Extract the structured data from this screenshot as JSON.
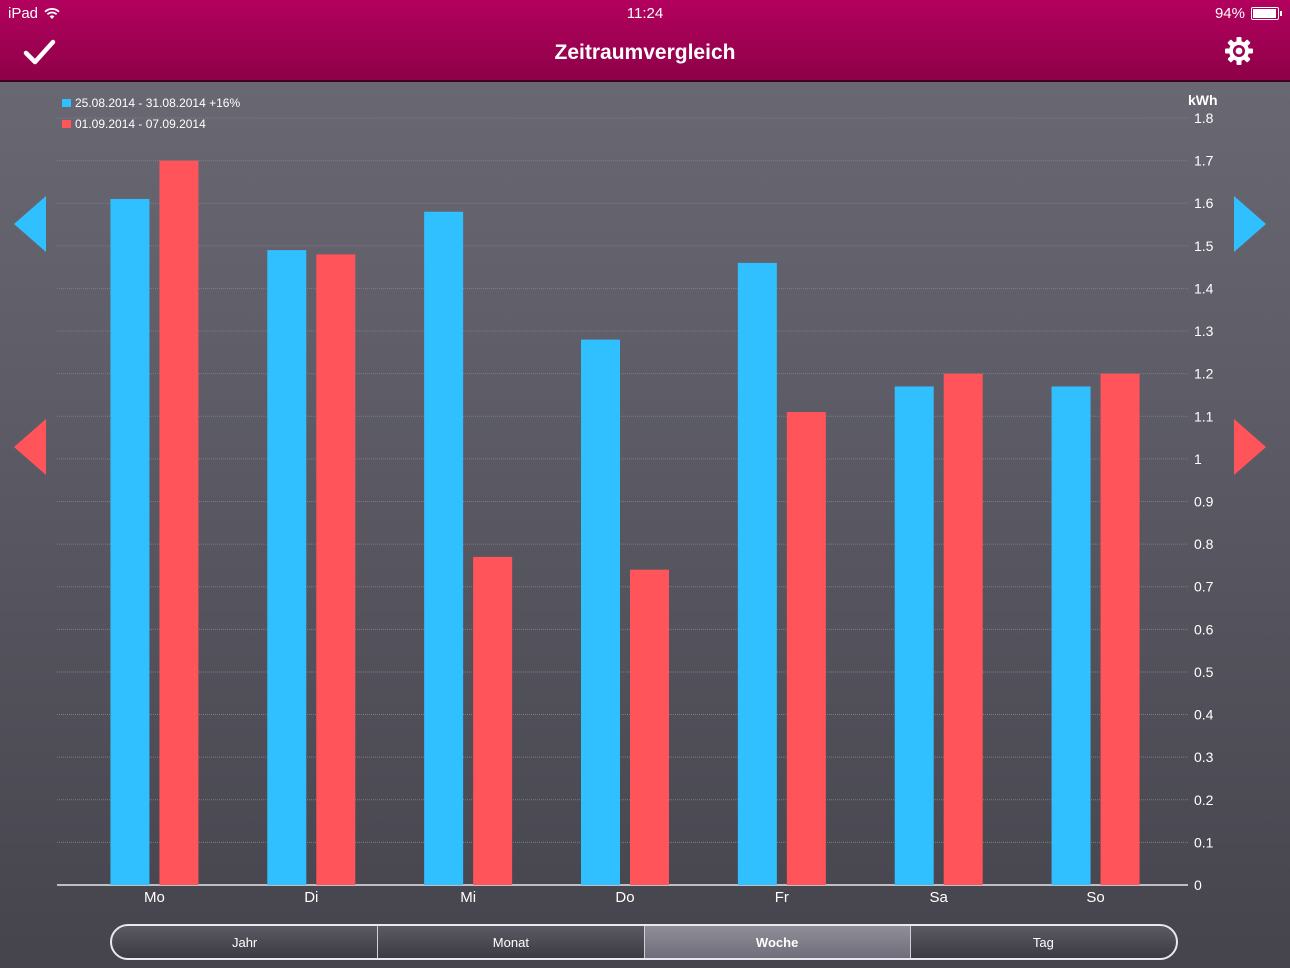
{
  "status_bar": {
    "carrier": "iPad",
    "time": "11:24",
    "battery": "94%",
    "battery_level": 0.94
  },
  "nav": {
    "title": "Zeitraumvergleich",
    "done_icon": "checkmark-icon",
    "settings_icon": "gear-icon"
  },
  "colors": {
    "series_1": "#30bfff",
    "series_2": "#ff5459",
    "bar_top": "#b3015e",
    "bar_bottom": "#8e0148"
  },
  "chart_data": {
    "type": "bar",
    "categories": [
      "Mo",
      "Di",
      "Mi",
      "Do",
      "Fr",
      "Sa",
      "So"
    ],
    "series": [
      {
        "name": "25.08.2014 - 31.08.2014 +16%",
        "color": "#30bfff",
        "values": [
          1.61,
          1.49,
          1.58,
          1.28,
          1.46,
          1.17,
          1.17
        ]
      },
      {
        "name": "01.09.2014 - 07.09.2014",
        "color": "#ff5459",
        "values": [
          1.7,
          1.48,
          0.77,
          0.74,
          1.11,
          1.2,
          1.2
        ]
      }
    ],
    "ylabel": "kWh",
    "ylim": [
      0,
      1.8
    ],
    "yticks": [
      "0",
      "0.1",
      "0.2",
      "0.3",
      "0.4",
      "0.5",
      "0.6",
      "0.7",
      "0.8",
      "0.9",
      "1",
      "1.1",
      "1.2",
      "1.3",
      "1.4",
      "1.5",
      "1.6",
      "1.7",
      "1.8"
    ],
    "legend_position": "top-left",
    "y_axis_side": "right",
    "grid": true
  },
  "period_tabs": [
    {
      "label": "Jahr",
      "active": false
    },
    {
      "label": "Monat",
      "active": false
    },
    {
      "label": "Woche",
      "active": true
    },
    {
      "label": "Tag",
      "active": false
    }
  ]
}
